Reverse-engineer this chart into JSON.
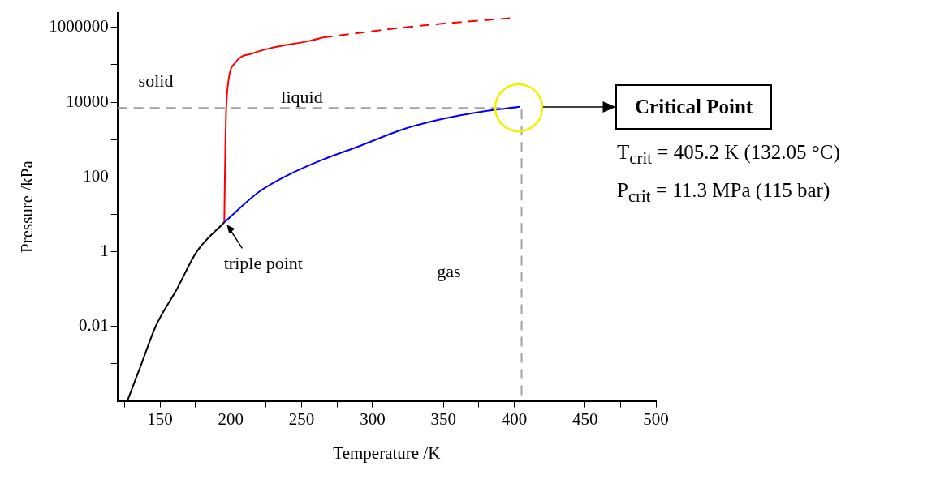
{
  "chart_data": {
    "type": "line",
    "xlabel": "Temperature /K",
    "ylabel": "Pressure /kPa",
    "log": "y",
    "marker": "none",
    "xlim": [
      120,
      500
    ],
    "xticks": [
      {
        "value": 125,
        "label": null
      },
      150,
      {
        "value": 175,
        "label": null
      },
      200,
      {
        "value": 225,
        "label": null
      },
      250,
      {
        "value": 275,
        "label": null
      },
      300,
      {
        "value": 325,
        "label": null
      },
      350,
      {
        "value": 375,
        "label": null
      },
      400,
      {
        "value": 425,
        "label": null
      },
      450,
      {
        "value": 475,
        "label": null
      },
      500
    ],
    "ylim": [
      0.0001,
      2500000
    ],
    "yticks": [
      {
        "value": 0.001,
        "label": null
      },
      0.01,
      {
        "value": 0.1,
        "label": null
      },
      1,
      {
        "value": 10,
        "label": null
      },
      100,
      {
        "value": 1000,
        "label": null
      },
      10000,
      {
        "value": 100000,
        "label": null
      },
      1000000
    ],
    "series": [
      {
        "color": "#000000",
        "x": [
          127,
          137,
          147,
          162,
          176,
          195.4
        ],
        "values": [
          0.0001,
          0.001,
          0.01,
          0.1,
          1,
          6.06
        ]
      },
      {
        "color": "#0000ff",
        "x": [
          195.4,
          220,
          240,
          265,
          290,
          323,
          350,
          380,
          404
        ],
        "values": [
          6.06,
          40,
          110,
          290,
          650,
          1950,
          3600,
          5800,
          7500
        ]
      },
      {
        "color": "#ff0000",
        "x": [
          195.4,
          195.8,
          196.2,
          196.7,
          198,
          203.3,
          215,
          226.5,
          255.5,
          265
        ],
        "values": [
          6.06,
          100,
          1000,
          6000,
          30000,
          115000,
          200000,
          270000,
          440000,
          540000
        ]
      },
      {
        "color": "#ff0000",
        "line_style": "dashed",
        "x": [
          265,
          330,
          397
        ],
        "values": [
          540000,
          1080000,
          1780000
        ]
      },
      {
        "color": "#a0a0a0",
        "line_style": "dashed",
        "x": [
          120,
          405.2,
          405.2
        ],
        "values": [
          7000,
          7000,
          0.0001
        ]
      }
    ],
    "annotations": [
      "solid",
      "liquid",
      "gas",
      {
        "text": "triple point",
        "x": 195.4,
        "y": 6.06
      },
      "Critical Point",
      "T$_{crit}$ = 405.2 K (132.05 °C)",
      "P$_{crit}$ = 11.3 MPa (115 bar)"
    ]
  }
}
